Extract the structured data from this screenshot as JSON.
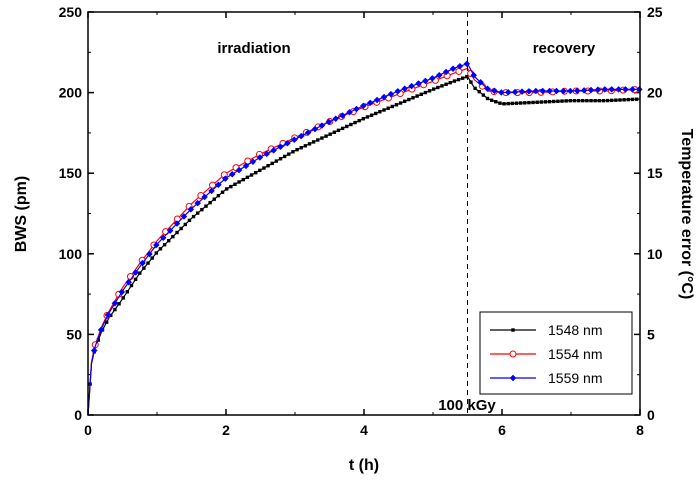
{
  "chart_data": {
    "type": "line",
    "xlabel": "t (h)",
    "ylabel": "BWS (pm)",
    "y2label": "Temperature error (°C)",
    "xlim": [
      0,
      8
    ],
    "ylim": [
      0,
      250
    ],
    "y2lim": [
      0,
      25
    ],
    "xticks": [
      "0",
      "2",
      "4",
      "6",
      "8"
    ],
    "yticks": [
      "0",
      "50",
      "100",
      "150",
      "200",
      "250"
    ],
    "y2ticks": [
      "0",
      "5",
      "10",
      "15",
      "20",
      "25"
    ],
    "grid": false,
    "legend_position": "bottom-right",
    "vline_x": 5.5,
    "annotations": {
      "irradiation": "irradiation",
      "recovery": "recovery",
      "dose": "100 kGy"
    },
    "series": [
      {
        "name": "1548 nm",
        "color": "#000000",
        "marker": "filled-square",
        "x": [
          0,
          0.05,
          0.1,
          0.2,
          0.3,
          0.5,
          0.75,
          1.0,
          1.5,
          2.0,
          2.5,
          3.0,
          3.5,
          4.0,
          4.5,
          5.0,
          5.3,
          5.5,
          5.6,
          5.8,
          6.0,
          6.5,
          7.0,
          7.5,
          8.0
        ],
        "y": [
          0,
          32,
          41,
          52,
          60,
          72,
          88,
          101,
          122,
          140,
          152,
          164,
          174,
          184,
          193,
          202,
          207,
          210,
          203,
          196,
          193,
          194,
          195,
          195,
          196
        ]
      },
      {
        "name": "1554 nm",
        "color": "#ff0000",
        "marker": "open-circle",
        "x": [
          0,
          0.05,
          0.1,
          0.2,
          0.3,
          0.5,
          0.75,
          1.0,
          1.5,
          2.0,
          2.5,
          3.0,
          3.5,
          4.0,
          4.5,
          5.0,
          5.3,
          5.5,
          5.6,
          5.8,
          6.0,
          6.5,
          7.0,
          7.5,
          8.0
        ],
        "y": [
          0,
          33,
          43,
          55,
          64,
          79,
          94,
          108,
          131,
          150,
          162,
          172,
          182,
          191,
          199,
          207,
          212,
          215,
          208,
          201,
          200,
          200,
          201,
          201,
          202
        ]
      },
      {
        "name": "1559 nm",
        "color": "#0000ff",
        "marker": "filled-diamond",
        "x": [
          0,
          0.05,
          0.1,
          0.2,
          0.3,
          0.5,
          0.75,
          1.0,
          1.5,
          2.0,
          2.5,
          3.0,
          3.5,
          4.0,
          4.5,
          5.0,
          5.3,
          5.5,
          5.6,
          5.8,
          6.0,
          6.5,
          7.0,
          7.5,
          8.0
        ],
        "y": [
          0,
          32,
          42,
          54,
          63,
          77,
          92,
          106,
          128,
          147,
          160,
          171,
          182,
          192,
          201,
          209,
          215,
          218,
          210,
          202,
          200,
          201,
          201,
          202,
          202
        ]
      }
    ]
  }
}
